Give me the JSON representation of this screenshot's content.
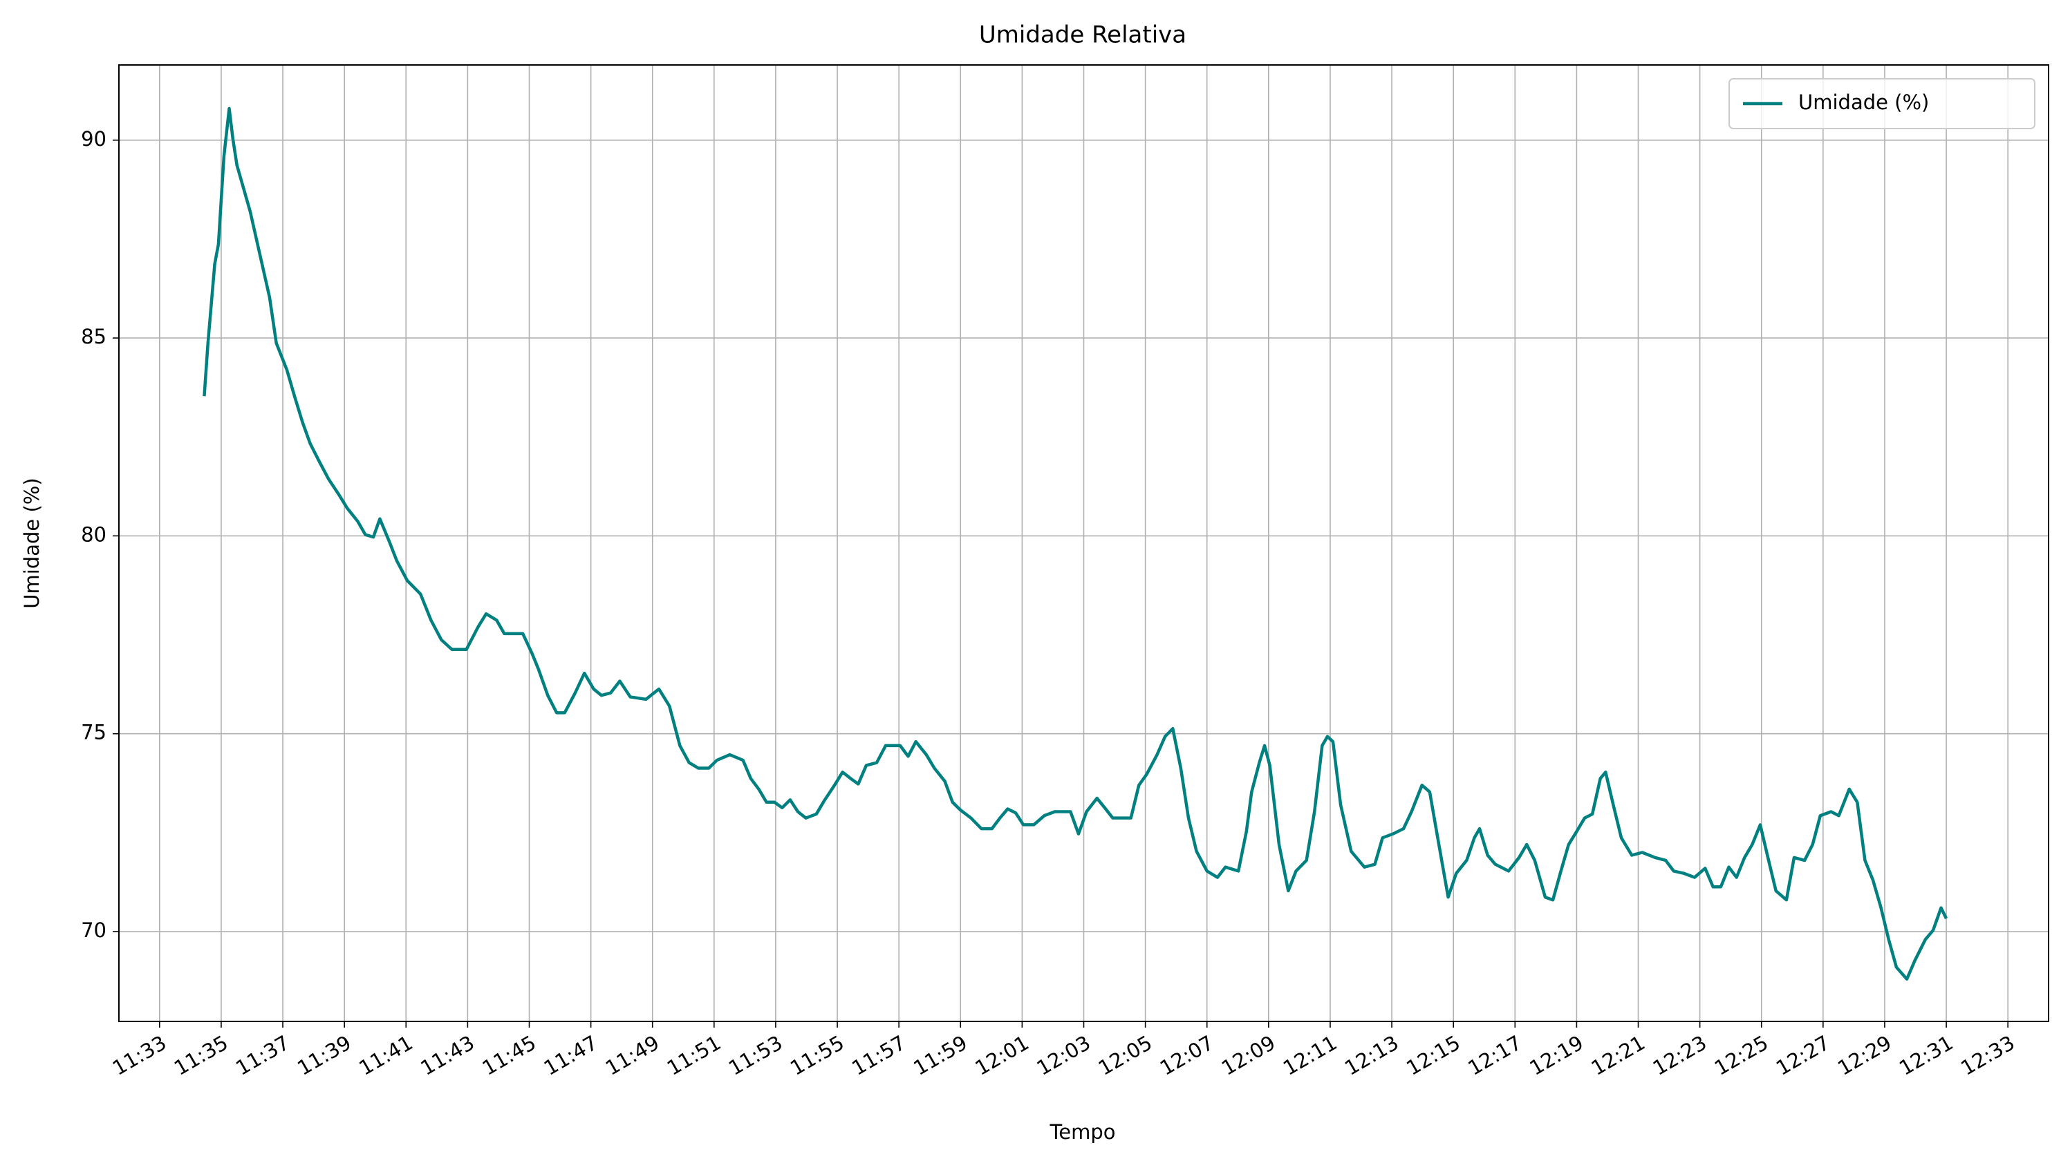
{
  "chart_data": {
    "type": "line",
    "title": "Umidade Relativa",
    "x_label": "Tempo",
    "y_label": "Umidade (%)",
    "x": [
      694.45,
      694.57,
      694.79,
      694.91,
      695.09,
      695.26,
      695.38,
      695.51,
      695.94,
      696.23,
      696.57,
      696.79,
      697.13,
      697.38,
      697.64,
      697.89,
      698.19,
      698.49,
      698.83,
      699.09,
      699.43,
      699.68,
      699.94,
      700.15,
      700.45,
      700.7,
      701.04,
      701.47,
      701.81,
      702.15,
      702.49,
      702.96,
      703.34,
      703.6,
      703.94,
      704.19,
      704.79,
      705.09,
      705.3,
      705.6,
      705.89,
      706.15,
      706.49,
      706.79,
      707.09,
      707.34,
      707.64,
      707.94,
      708.28,
      708.79,
      709.21,
      709.55,
      709.89,
      710.19,
      710.49,
      710.83,
      711.09,
      711.51,
      711.94,
      712.19,
      712.45,
      712.7,
      712.96,
      713.21,
      713.47,
      713.72,
      713.98,
      714.32,
      714.57,
      714.91,
      715.17,
      715.43,
      715.68,
      715.94,
      716.28,
      716.57,
      717.04,
      717.3,
      717.55,
      717.89,
      718.15,
      718.49,
      718.74,
      719.0,
      719.34,
      719.68,
      720.02,
      720.28,
      720.53,
      720.79,
      721.04,
      721.38,
      721.72,
      722.06,
      722.57,
      722.83,
      723.09,
      723.43,
      723.68,
      723.94,
      724.53,
      724.79,
      725.04,
      725.38,
      725.64,
      725.89,
      726.15,
      726.4,
      726.66,
      727.0,
      727.34,
      727.6,
      728.02,
      728.28,
      728.45,
      728.7,
      728.87,
      729.04,
      729.34,
      729.64,
      729.89,
      730.23,
      730.49,
      730.74,
      730.91,
      731.09,
      731.34,
      731.68,
      732.11,
      732.45,
      732.7,
      733.04,
      733.38,
      733.64,
      733.98,
      734.23,
      734.49,
      734.83,
      735.09,
      735.43,
      735.68,
      735.85,
      736.11,
      736.36,
      736.79,
      737.13,
      737.38,
      737.64,
      737.98,
      738.23,
      738.49,
      738.74,
      739.0,
      739.26,
      739.51,
      739.77,
      739.94,
      740.19,
      740.45,
      740.79,
      741.13,
      741.55,
      741.89,
      742.15,
      742.49,
      742.83,
      743.17,
      743.43,
      743.68,
      743.94,
      744.19,
      744.45,
      744.7,
      744.96,
      745.21,
      745.47,
      745.81,
      746.06,
      746.4,
      746.66,
      746.91,
      747.26,
      747.51,
      747.85,
      748.11,
      748.36,
      748.62,
      748.87,
      749.13,
      749.38,
      749.72,
      749.98,
      750.32,
      750.57,
      750.83,
      751.0
    ],
    "series": [
      {
        "name": "Umidade (%)",
        "color": "#008080",
        "values": [
          83.53,
          84.87,
          86.87,
          87.37,
          89.6,
          90.8,
          90.03,
          89.37,
          88.2,
          87.2,
          86.03,
          84.87,
          84.2,
          83.53,
          82.87,
          82.33,
          81.87,
          81.43,
          81.03,
          80.7,
          80.37,
          80.03,
          79.97,
          80.43,
          79.87,
          79.37,
          78.87,
          78.53,
          77.87,
          77.37,
          77.13,
          77.13,
          77.7,
          78.03,
          77.87,
          77.53,
          77.53,
          77.03,
          76.63,
          75.97,
          75.53,
          75.53,
          76.03,
          76.53,
          76.13,
          75.97,
          76.03,
          76.33,
          75.93,
          75.87,
          76.13,
          75.7,
          74.7,
          74.27,
          74.13,
          74.13,
          74.33,
          74.47,
          74.33,
          73.87,
          73.6,
          73.27,
          73.27,
          73.13,
          73.33,
          73.03,
          72.87,
          72.97,
          73.3,
          73.7,
          74.03,
          73.87,
          73.73,
          74.2,
          74.27,
          74.7,
          74.7,
          74.43,
          74.8,
          74.47,
          74.13,
          73.8,
          73.27,
          73.07,
          72.87,
          72.6,
          72.6,
          72.87,
          73.1,
          73.0,
          72.7,
          72.7,
          72.93,
          73.03,
          73.03,
          72.47,
          73.03,
          73.37,
          73.13,
          72.87,
          72.87,
          73.7,
          73.97,
          74.47,
          74.93,
          75.13,
          74.13,
          72.87,
          72.03,
          71.53,
          71.37,
          71.63,
          71.53,
          72.53,
          73.53,
          74.27,
          74.7,
          74.2,
          72.2,
          71.03,
          71.53,
          71.8,
          73.03,
          74.7,
          74.93,
          74.8,
          73.2,
          72.03,
          71.63,
          71.7,
          72.37,
          72.47,
          72.6,
          73.03,
          73.7,
          73.53,
          72.37,
          70.87,
          71.47,
          71.8,
          72.37,
          72.6,
          71.93,
          71.7,
          71.53,
          71.87,
          72.2,
          71.8,
          70.87,
          70.8,
          71.53,
          72.2,
          72.53,
          72.87,
          72.97,
          73.87,
          74.03,
          73.2,
          72.37,
          71.93,
          72.0,
          71.87,
          71.8,
          71.53,
          71.47,
          71.37,
          71.6,
          71.13,
          71.13,
          71.63,
          71.37,
          71.87,
          72.2,
          72.7,
          71.87,
          71.03,
          70.8,
          71.87,
          71.8,
          72.2,
          72.93,
          73.03,
          72.93,
          73.6,
          73.27,
          71.8,
          71.3,
          70.63,
          69.8,
          69.1,
          68.8,
          69.27,
          69.8,
          70.03,
          70.6,
          70.33
        ]
      }
    ],
    "xlim": [
      691.68,
      754.32
    ],
    "ylim": [
      67.73,
      91.9
    ],
    "xticks": [
      {
        "value": 693,
        "label": "11:33"
      },
      {
        "value": 695,
        "label": "11:35"
      },
      {
        "value": 697,
        "label": "11:37"
      },
      {
        "value": 699,
        "label": "11:39"
      },
      {
        "value": 701,
        "label": "11:41"
      },
      {
        "value": 703,
        "label": "11:43"
      },
      {
        "value": 705,
        "label": "11:45"
      },
      {
        "value": 707,
        "label": "11:47"
      },
      {
        "value": 709,
        "label": "11:49"
      },
      {
        "value": 711,
        "label": "11:51"
      },
      {
        "value": 713,
        "label": "11:53"
      },
      {
        "value": 715,
        "label": "11:55"
      },
      {
        "value": 717,
        "label": "11:57"
      },
      {
        "value": 719,
        "label": "11:59"
      },
      {
        "value": 721,
        "label": "12:01"
      },
      {
        "value": 723,
        "label": "12:03"
      },
      {
        "value": 725,
        "label": "12:05"
      },
      {
        "value": 727,
        "label": "12:07"
      },
      {
        "value": 729,
        "label": "12:09"
      },
      {
        "value": 731,
        "label": "12:11"
      },
      {
        "value": 733,
        "label": "12:13"
      },
      {
        "value": 735,
        "label": "12:15"
      },
      {
        "value": 737,
        "label": "12:17"
      },
      {
        "value": 739,
        "label": "12:19"
      },
      {
        "value": 741,
        "label": "12:21"
      },
      {
        "value": 743,
        "label": "12:23"
      },
      {
        "value": 745,
        "label": "12:25"
      },
      {
        "value": 747,
        "label": "12:27"
      },
      {
        "value": 749,
        "label": "12:29"
      },
      {
        "value": 751,
        "label": "12:31"
      },
      {
        "value": 753,
        "label": "12:33"
      }
    ],
    "yticks": [
      70,
      75,
      80,
      85,
      90
    ],
    "grid": true,
    "legend": "upper right"
  }
}
